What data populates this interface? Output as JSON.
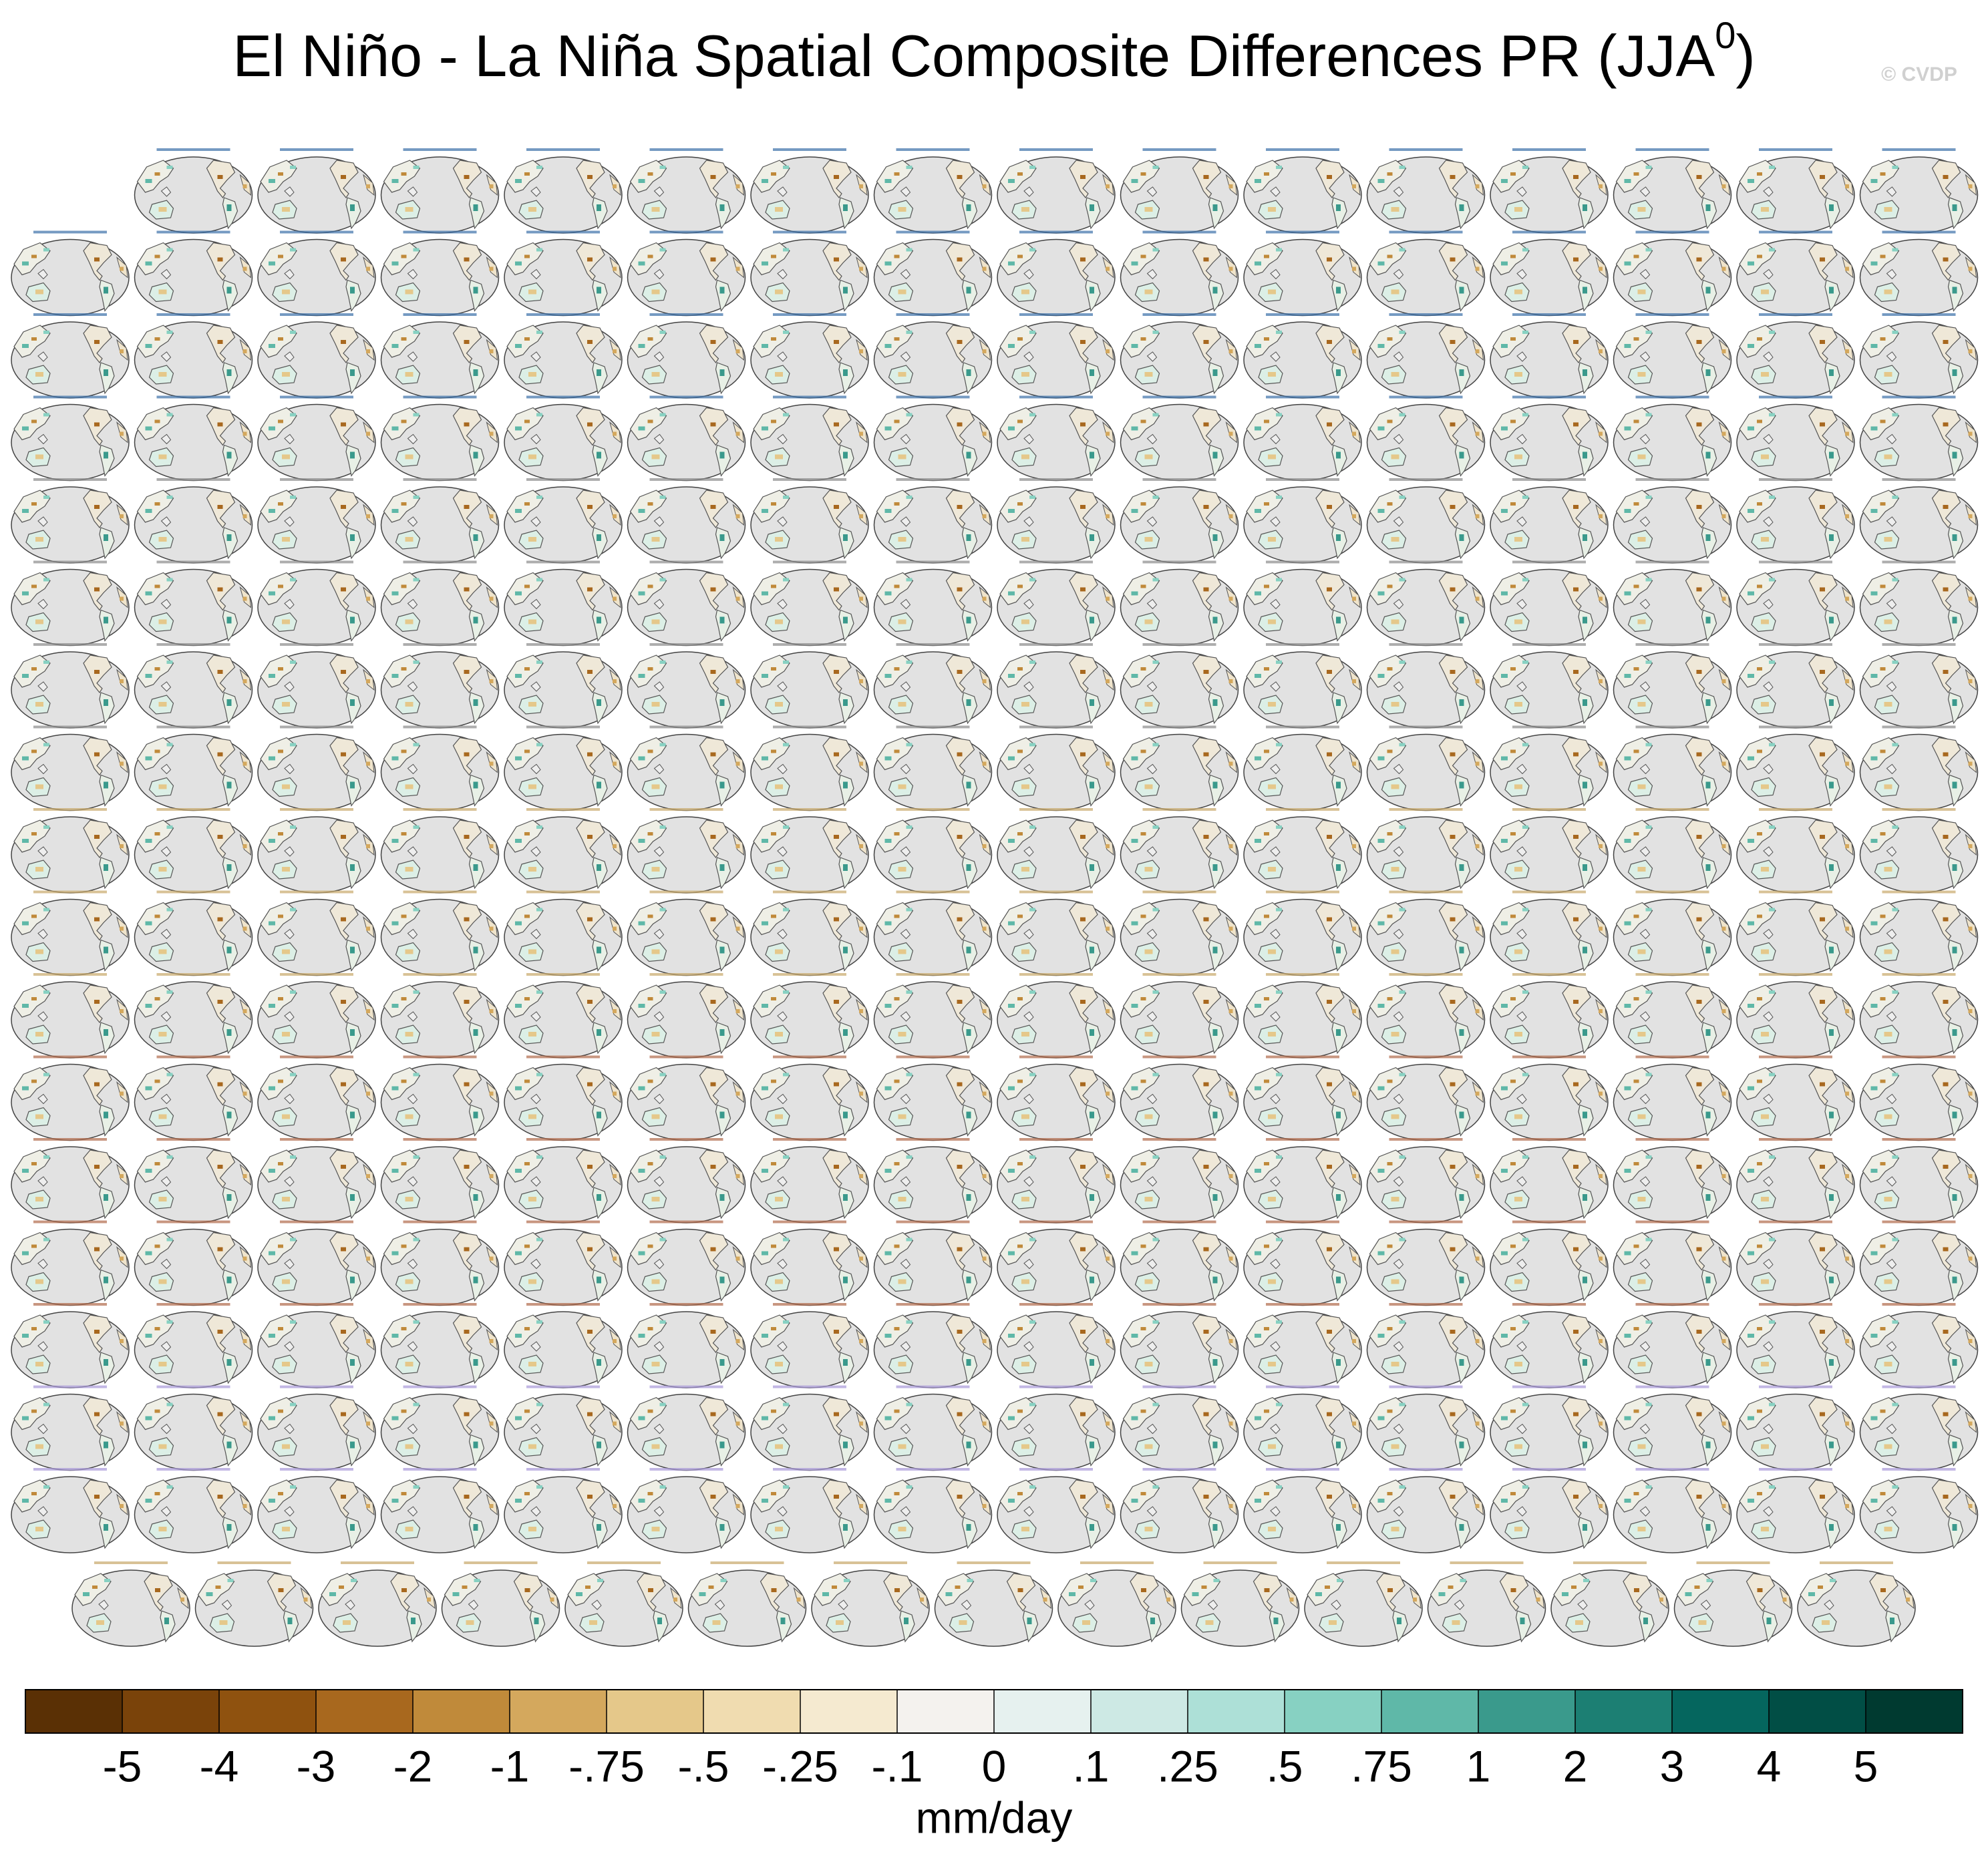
{
  "chart_data": {
    "type": "map-grid",
    "title": "El Niño - La Niña Spatial Composite Differences PR (JJA",
    "title_superscript": "0",
    "title_end": ")",
    "watermark": "© CVDP",
    "colorbar": {
      "colors": [
        "#5a3005",
        "#7a430a",
        "#8f520f",
        "#a8681e",
        "#c08a3a",
        "#d4a85d",
        "#e5c88a",
        "#f0dcb0",
        "#f5ead0",
        "#f4f2ee",
        "#e6f1ef",
        "#cde9e4",
        "#ade0d7",
        "#87d1c2",
        "#5fb8a8",
        "#3a9a8c",
        "#1c7f73",
        "#05665e",
        "#014e45",
        "#003a30"
      ],
      "ticks": [
        -5,
        -4,
        -3,
        -2,
        -1,
        {
          "value": -0.75,
          "label": "-.75"
        },
        {
          "value": -0.5,
          "label": "-.5"
        },
        {
          "value": -0.25,
          "label": "-.25"
        },
        {
          "value": -0.1,
          "label": "-.1"
        },
        0,
        {
          "value": 0.1,
          "label": ".1"
        },
        {
          "value": 0.25,
          "label": ".25"
        },
        {
          "value": 0.5,
          "label": ".5"
        },
        {
          "value": 0.75,
          "label": ".75"
        },
        1,
        2,
        3,
        4,
        5
      ],
      "units": "mm/day"
    }
  }
}
